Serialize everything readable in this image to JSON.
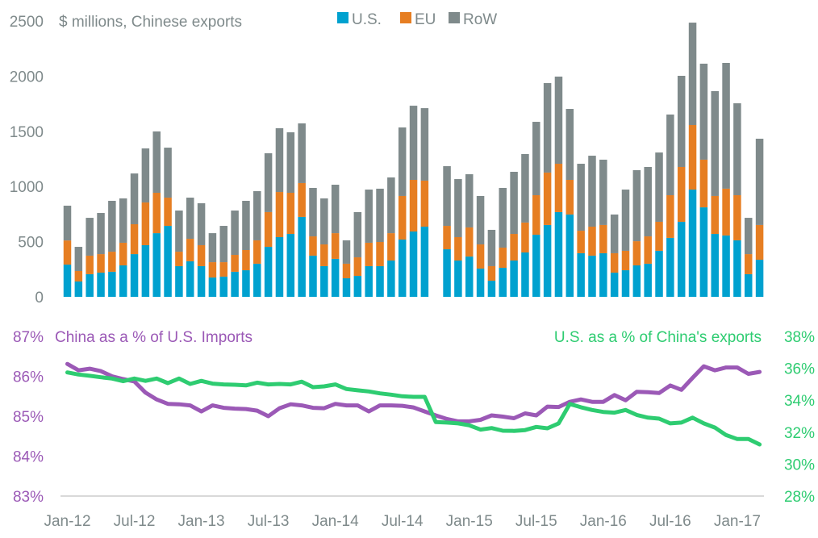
{
  "chart_data": [
    {
      "type": "bar",
      "stacked": true,
      "title": "$ millions, Chinese exports",
      "xlabel": "",
      "ylabel": "",
      "ylim": [
        0,
        2500
      ],
      "yticks": [
        0,
        500,
        1000,
        1500,
        2000,
        2500
      ],
      "grid": false,
      "legend_position": "top",
      "categories": [
        "Jan-12",
        "Feb-12",
        "Mar-12",
        "Apr-12",
        "May-12",
        "Jun-12",
        "Jul-12",
        "Aug-12",
        "Sep-12",
        "Oct-12",
        "Nov-12",
        "Dec-12",
        "Jan-13",
        "Feb-13",
        "Mar-13",
        "Apr-13",
        "May-13",
        "Jun-13",
        "Jul-13",
        "Aug-13",
        "Sep-13",
        "Oct-13",
        "Nov-13",
        "Dec-13",
        "Jan-14",
        "Feb-14",
        "Mar-14",
        "Apr-14",
        "May-14",
        "Jun-14",
        "Jul-14",
        "Aug-14",
        "Sep-14",
        "Oct-14",
        "Nov-14",
        "Dec-14",
        "Jan-15",
        "Feb-15",
        "Mar-15",
        "Apr-15",
        "May-15",
        "Jun-15",
        "Jul-15",
        "Aug-15",
        "Sep-15",
        "Oct-15",
        "Nov-15",
        "Dec-15",
        "Jan-16",
        "Feb-16",
        "Mar-16",
        "Apr-16",
        "May-16",
        "Jun-16",
        "Jul-16",
        "Aug-16",
        "Sep-16",
        "Oct-16",
        "Nov-16",
        "Dec-16",
        "Jan-17",
        "Feb-17",
        "Mar-17"
      ],
      "series": [
        {
          "name": "U.S.",
          "color": "#00a1cf",
          "values": [
            292,
            139,
            205,
            219,
            227,
            285,
            387,
            468,
            577,
            643,
            278,
            322,
            278,
            175,
            183,
            227,
            241,
            300,
            453,
            541,
            570,
            724,
            373,
            278,
            344,
            168,
            190,
            278,
            278,
            329,
            519,
            592,
            636,
            null,
            431,
            329,
            365,
            256,
            146,
            263,
            329,
            402,
            563,
            651,
            768,
            746,
            395,
            373,
            395,
            219,
            241,
            285,
            300,
            417,
            534,
            680,
            972,
            811,
            570,
            556,
            512,
            205,
            336
          ]
        },
        {
          "name": "EU",
          "color": "#e67e22",
          "values": [
            219,
            95,
            168,
            168,
            182,
            205,
            271,
            387,
            366,
            256,
            131,
            204,
            190,
            139,
            131,
            153,
            183,
            212,
            315,
            409,
            373,
            307,
            175,
            197,
            233,
            132,
            168,
            212,
            219,
            248,
            395,
            468,
            417,
            null,
            212,
            212,
            264,
            219,
            132,
            183,
            241,
            271,
            358,
            475,
            438,
            314,
            204,
            263,
            256,
            176,
            176,
            219,
            248,
            263,
            387,
            497,
            585,
            432,
            344,
            424,
            409,
            182,
            315
          ]
        },
        {
          "name": "RoW",
          "color": "#7f8a8b",
          "values": [
            315,
            219,
            343,
            373,
            461,
            402,
            460,
            490,
            556,
            453,
            373,
            373,
            380,
            263,
            329,
            402,
            446,
            446,
            533,
            578,
            548,
            541,
            439,
            417,
            439,
            212,
            410,
            482,
            483,
            505,
            621,
            672,
            657,
            null,
            541,
            526,
            482,
            439,
            329,
            541,
            563,
            621,
            665,
            811,
            790,
            643,
            607,
            643,
            592,
            351,
            555,
            644,
            629,
            628,
            731,
            826,
            928,
            870,
            950,
            1140,
            833,
            329,
            782
          ]
        }
      ]
    },
    {
      "type": "line",
      "title": "",
      "x_ticks": [
        "Jan-12",
        "Jul-12",
        "Jan-13",
        "Jul-13",
        "Jan-14",
        "Jul-14",
        "Jan-15",
        "Jul-15",
        "Jan-16",
        "Jul-16",
        "Jan-17"
      ],
      "categories": [
        "Jan-12",
        "Feb-12",
        "Mar-12",
        "Apr-12",
        "May-12",
        "Jun-12",
        "Jul-12",
        "Aug-12",
        "Sep-12",
        "Oct-12",
        "Nov-12",
        "Dec-12",
        "Jan-13",
        "Feb-13",
        "Mar-13",
        "Apr-13",
        "May-13",
        "Jun-13",
        "Jul-13",
        "Aug-13",
        "Sep-13",
        "Oct-13",
        "Nov-13",
        "Dec-13",
        "Jan-14",
        "Feb-14",
        "Mar-14",
        "Apr-14",
        "May-14",
        "Jun-14",
        "Jul-14",
        "Aug-14",
        "Sep-14",
        "Oct-14",
        "Nov-14",
        "Dec-14",
        "Jan-15",
        "Feb-15",
        "Mar-15",
        "Apr-15",
        "May-15",
        "Jun-15",
        "Jul-15",
        "Aug-15",
        "Sep-15",
        "Oct-15",
        "Nov-15",
        "Dec-15",
        "Jan-16",
        "Feb-16",
        "Mar-16",
        "Apr-16",
        "May-16",
        "Jun-16",
        "Jul-16",
        "Aug-16",
        "Sep-16",
        "Oct-16",
        "Nov-16",
        "Dec-16",
        "Jan-17",
        "Feb-17",
        "Mar-17"
      ],
      "grid": false,
      "left_axis": {
        "label": "China as a % of U.S. Imports",
        "ylim": [
          83,
          87
        ],
        "ticks": [
          "83%",
          "84%",
          "85%",
          "86%",
          "87%"
        ],
        "tick_values": [
          83,
          84,
          85,
          86,
          87
        ]
      },
      "right_axis": {
        "label": "U.S. as a % of China's exports",
        "ylim": [
          28,
          38
        ],
        "ticks": [
          "28%",
          "30%",
          "32%",
          "34%",
          "36%",
          "38%"
        ],
        "tick_values": [
          28,
          30,
          32,
          34,
          36,
          38
        ]
      },
      "series": [
        {
          "name": "China as a % of U.S. Imports",
          "axis": "left",
          "color": "#9b59b6",
          "values": [
            86.31,
            86.15,
            86.19,
            86.13,
            86.0,
            85.93,
            85.87,
            85.59,
            85.42,
            85.31,
            85.3,
            85.27,
            85.12,
            85.27,
            85.21,
            85.19,
            85.18,
            85.14,
            85.0,
            85.2,
            85.3,
            85.27,
            85.21,
            85.2,
            85.31,
            85.27,
            85.27,
            85.12,
            85.27,
            85.27,
            85.26,
            85.22,
            85.12,
            85.02,
            84.93,
            84.87,
            84.87,
            84.91,
            85.02,
            84.99,
            84.95,
            85.07,
            85.02,
            85.24,
            85.23,
            85.36,
            85.42,
            85.36,
            85.36,
            85.53,
            85.4,
            85.61,
            85.6,
            85.58,
            85.77,
            85.66,
            85.96,
            86.25,
            86.15,
            86.22,
            86.22,
            86.06,
            86.11
          ]
        },
        {
          "name": "U.S. as a % of China's exports",
          "axis": "right",
          "color": "#2ecc71",
          "values": [
            35.74,
            35.61,
            35.53,
            35.44,
            35.36,
            35.19,
            35.36,
            35.21,
            35.36,
            35.07,
            35.36,
            35.02,
            35.21,
            35.04,
            34.99,
            34.97,
            34.93,
            35.1,
            34.99,
            35.02,
            34.99,
            35.16,
            34.82,
            34.87,
            34.99,
            34.7,
            34.62,
            34.55,
            34.43,
            34.35,
            34.25,
            34.21,
            34.21,
            32.63,
            32.6,
            32.55,
            32.43,
            32.16,
            32.26,
            32.09,
            32.08,
            32.13,
            32.33,
            32.24,
            32.55,
            33.77,
            33.56,
            33.39,
            33.27,
            33.22,
            33.39,
            33.08,
            32.91,
            32.85,
            32.55,
            32.6,
            32.91,
            32.55,
            32.29,
            31.82,
            31.57,
            31.57,
            31.23
          ]
        }
      ]
    }
  ]
}
